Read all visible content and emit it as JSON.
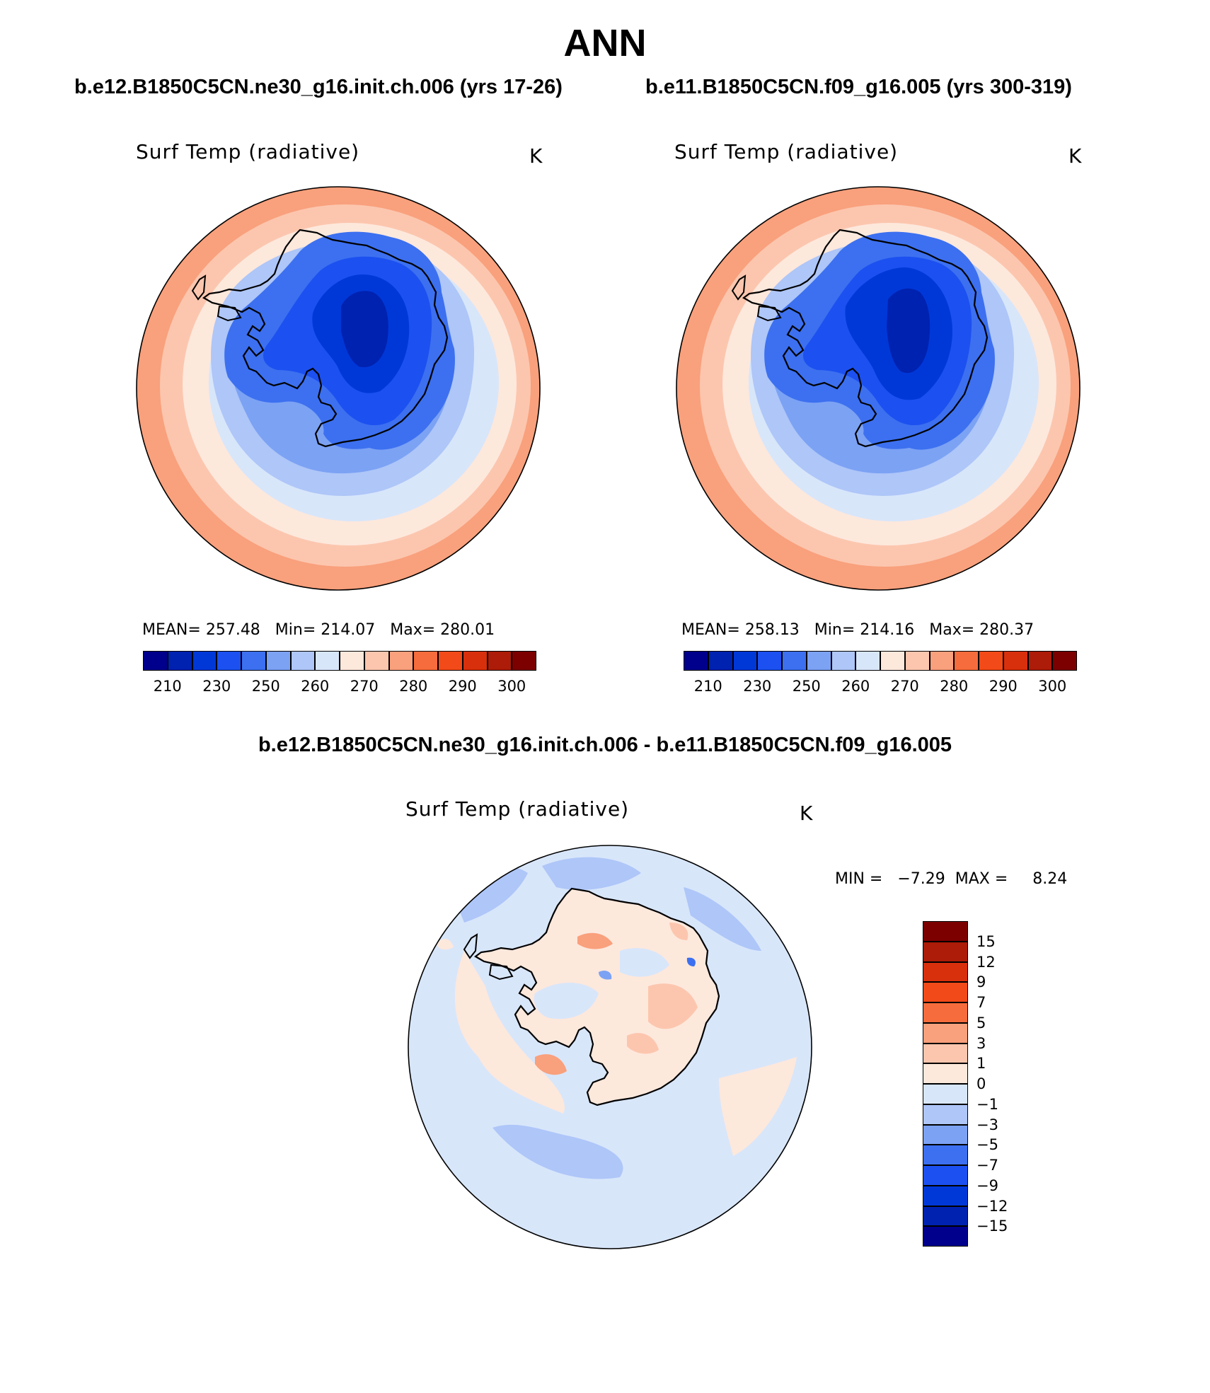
{
  "title": "ANN",
  "panels": [
    {
      "case_title": "b.e12.B1850C5CN.ne30_g16.init.ch.006 (yrs 17-26)",
      "variable": "Surf Temp (radiative)",
      "units": "K",
      "stats": {
        "mean_label": "MEAN=",
        "mean": "257.48",
        "min_label": "Min=",
        "min": "214.07",
        "max_label": "Max=",
        "max": "280.01"
      }
    },
    {
      "case_title": "b.e11.B1850C5CN.f09_g16.005 (yrs 300-319)",
      "variable": "Surf Temp (radiative)",
      "units": "K",
      "stats": {
        "mean_label": "MEAN=",
        "mean": "258.13",
        "min_label": "Min=",
        "min": "214.16",
        "max_label": "Max=",
        "max": "280.37"
      }
    }
  ],
  "colorbar": {
    "labels": [
      "210",
      "230",
      "250",
      "260",
      "270",
      "280",
      "290",
      "300"
    ],
    "colors": [
      "#00008c",
      "#0022b0",
      "#0038d8",
      "#1c50f0",
      "#3c70f0",
      "#7ca2f4",
      "#aec6f8",
      "#d8e6fa",
      "#fde8dc",
      "#fcc6ae",
      "#f9a07c",
      "#f76c3c",
      "#f24a18",
      "#d8300c",
      "#ac1c08",
      "#7c0000"
    ]
  },
  "difference": {
    "title": "b.e12.B1850C5CN.ne30_g16.init.ch.006 - b.e11.B1850C5CN.f09_g16.005",
    "variable": "Surf Temp (radiative)",
    "units": "K",
    "min_label": "MIN =",
    "min": "−7.29",
    "max_label": "MAX =",
    "max": "8.24",
    "colorbar_labels": [
      "15",
      "12",
      "9",
      "7",
      "5",
      "3",
      "1",
      "0",
      "−1",
      "−3",
      "−5",
      "−7",
      "−9",
      "−12",
      "−15"
    ],
    "colorbar_colors": [
      "#7c0000",
      "#ac1c08",
      "#d8300c",
      "#f24a18",
      "#f76c3c",
      "#f9a07c",
      "#fcc6ae",
      "#fde8dc",
      "#d8e6fa",
      "#aec6f8",
      "#7ca2f4",
      "#3c70f0",
      "#1c50f0",
      "#0038d8",
      "#0022b0",
      "#00008c"
    ]
  }
}
